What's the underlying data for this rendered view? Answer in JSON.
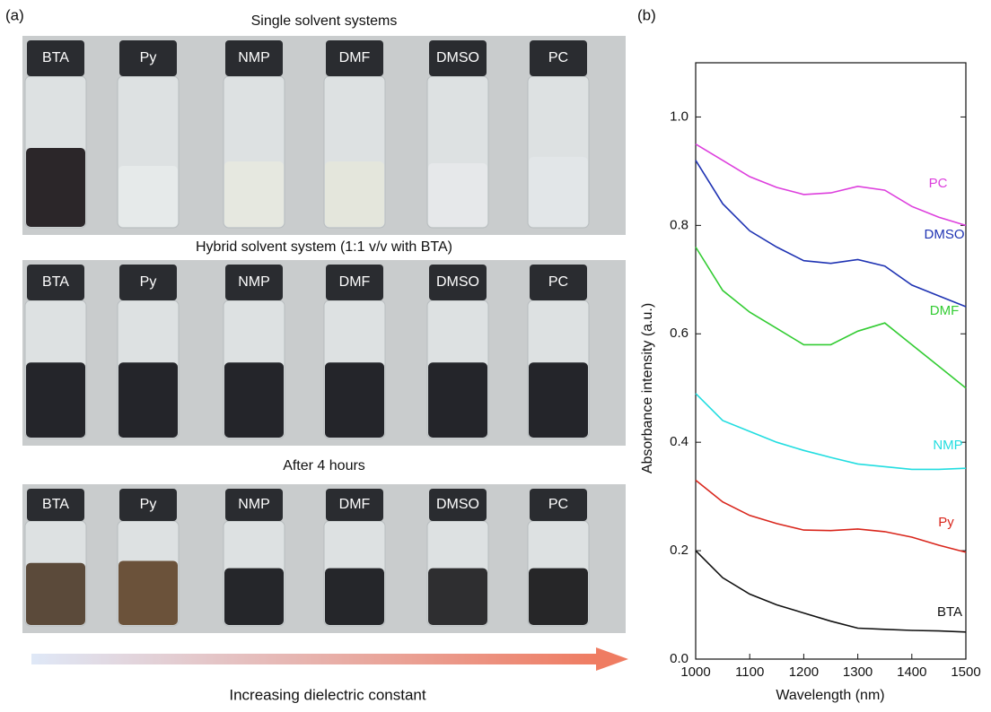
{
  "panel_a": {
    "label": "(a)",
    "rows": [
      {
        "title": "Single solvent systems",
        "vials": [
          "BTA",
          "Py",
          "NMP",
          "DMF",
          "DMSO",
          "PC"
        ]
      },
      {
        "title": "Hybrid solvent system (1:1 v/v with BTA)",
        "vials": [
          "BTA",
          "Py",
          "NMP",
          "DMF",
          "DMSO",
          "PC"
        ]
      },
      {
        "title": "After 4 hours",
        "vials": [
          "BTA",
          "Py",
          "NMP",
          "DMF",
          "DMSO",
          "PC"
        ]
      }
    ],
    "arrow_label": "Increasing dielectric constant"
  },
  "panel_b_label": "(b)",
  "chart_data": {
    "type": "line",
    "x_label": "Wavelength (nm)",
    "y_label": "Absorbance intensity (a.u.)",
    "x": [
      1000,
      1050,
      1100,
      1150,
      1200,
      1250,
      1300,
      1350,
      1400,
      1450,
      1500
    ],
    "xlim": [
      1000,
      1500
    ],
    "xticks": [
      1000,
      1100,
      1200,
      1300,
      1400,
      1500
    ],
    "ylim": [
      0,
      1.1
    ],
    "yticks": [
      {
        "value": 0,
        "label": "0.0"
      },
      0.2,
      0.4,
      0.6,
      0.8,
      {
        "value": 1,
        "label": "1.0"
      }
    ],
    "series": [
      {
        "name": "BTA",
        "color": "#111111",
        "values": [
          0.2,
          0.15,
          0.12,
          0.1,
          0.085,
          0.07,
          0.057,
          0.055,
          0.053,
          0.052,
          0.05
        ]
      },
      {
        "name": "Py",
        "color": "#d9261c",
        "values": [
          0.33,
          0.29,
          0.265,
          0.25,
          0.238,
          0.237,
          0.24,
          0.235,
          0.225,
          0.21,
          0.197
        ]
      },
      {
        "name": "NMP",
        "color": "#22dde0",
        "values": [
          0.49,
          0.44,
          0.42,
          0.4,
          0.385,
          0.372,
          0.36,
          0.355,
          0.35,
          0.35,
          0.352
        ]
      },
      {
        "name": "DMF",
        "color": "#33cc33",
        "values": [
          0.76,
          0.68,
          0.64,
          0.61,
          0.58,
          0.58,
          0.605,
          0.62,
          0.58,
          0.54,
          0.5
        ]
      },
      {
        "name": "DMSO",
        "color": "#1f33b3",
        "values": [
          0.92,
          0.84,
          0.79,
          0.76,
          0.735,
          0.73,
          0.737,
          0.725,
          0.69,
          0.67,
          0.65
        ]
      },
      {
        "name": "PC",
        "color": "#dd3fdd",
        "values": [
          0.95,
          0.92,
          0.89,
          0.87,
          0.857,
          0.86,
          0.872,
          0.865,
          0.835,
          0.815,
          0.8
        ]
      }
    ]
  }
}
